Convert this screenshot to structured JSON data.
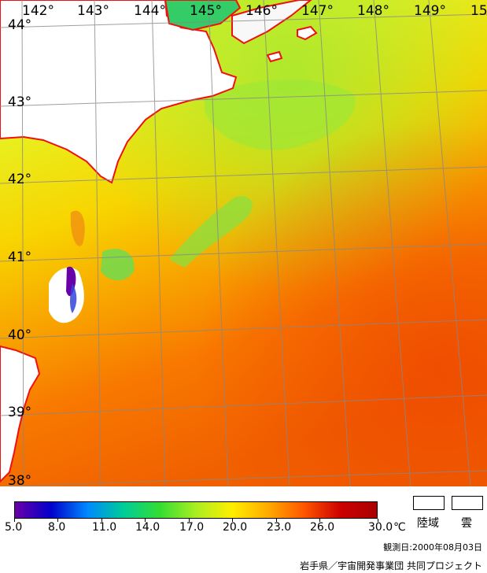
{
  "map": {
    "longitude_labels": [
      "142°",
      "143°",
      "144°",
      "145°",
      "146°",
      "147°",
      "148°",
      "149°",
      "15"
    ],
    "latitude_labels": [
      "44°",
      "43°",
      "42°",
      "41°",
      "40°",
      "39°",
      "38°"
    ]
  },
  "colorbar": {
    "ticks": [
      "5.0",
      "8.0",
      "11.0",
      "14.0",
      "17.0",
      "20.0",
      "23.0",
      "26.0",
      "30.0"
    ],
    "unit": "℃",
    "colors": [
      "#6a00a8",
      "#0000cc",
      "#0088ff",
      "#00cc99",
      "#33dd33",
      "#aaee22",
      "#ffee00",
      "#ffaa00",
      "#ff5500",
      "#cc0000",
      "#aa0000"
    ]
  },
  "legend": {
    "land_label": "陸域",
    "cloud_label": "雲"
  },
  "footer": {
    "observation_date": "観測日:2000年08月03日",
    "credit": "岩手県／宇宙開発事業団  共同プロジェクト"
  }
}
